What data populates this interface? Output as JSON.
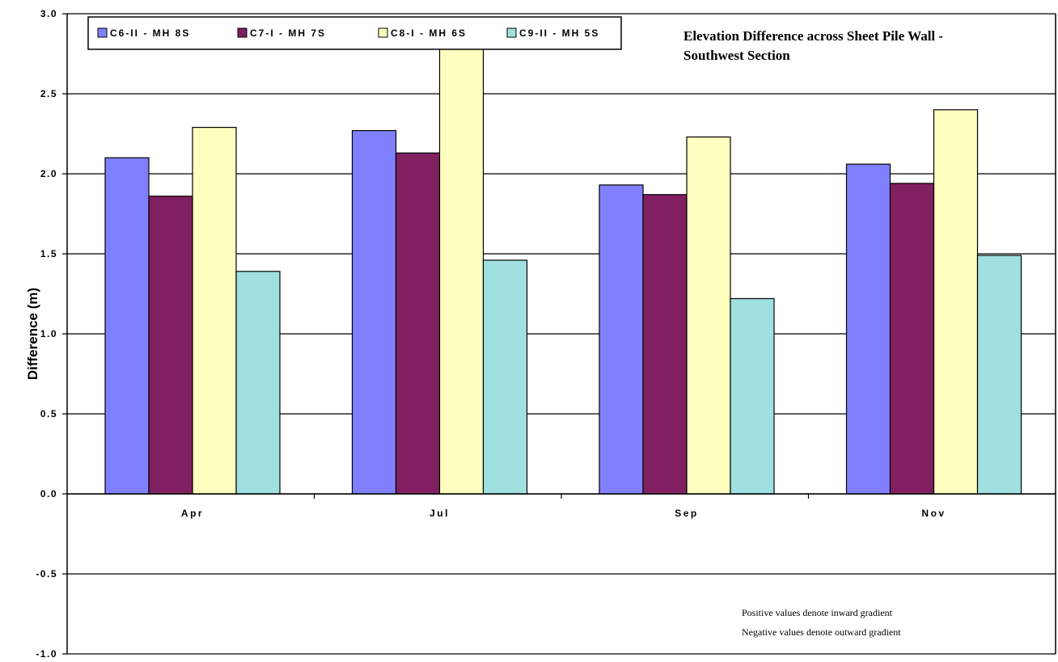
{
  "chart_data": {
    "type": "bar",
    "title_lines": [
      "Elevation Difference across Sheet Pile Wall -",
      "Southwest Section"
    ],
    "ylabel": "Difference (m)",
    "xlabel": "",
    "ylim": [
      -1.0,
      3.0
    ],
    "y_ticks": [
      "3.0",
      "2.5",
      "2.0",
      "1.5",
      "1.0",
      "0.5",
      "0.0",
      "-0.5",
      "-1.0"
    ],
    "y_tick_values": [
      3.0,
      2.5,
      2.0,
      1.5,
      1.0,
      0.5,
      0.0,
      -0.5,
      -1.0
    ],
    "grid": true,
    "legend_position": "top-left",
    "categories": [
      "Apr",
      "Jul",
      "Sep",
      "Nov"
    ],
    "series": [
      {
        "name": "C6-II - MH 8S",
        "color": "#8080ff",
        "values": [
          2.1,
          2.27,
          1.93,
          2.06
        ]
      },
      {
        "name": "C7-I - MH 7S",
        "color": "#802060",
        "values": [
          1.86,
          2.13,
          1.87,
          1.94
        ]
      },
      {
        "name": "C8-I - MH 6S",
        "color": "#ffffc0",
        "values": [
          2.29,
          2.81,
          2.23,
          2.4
        ]
      },
      {
        "name": "C9-II - MH 5S",
        "color": "#a0e0e0",
        "values": [
          1.39,
          1.46,
          1.22,
          1.49
        ]
      }
    ],
    "notes": [
      "Positive values denote inward gradient",
      "Negative values denote outward gradient"
    ]
  }
}
